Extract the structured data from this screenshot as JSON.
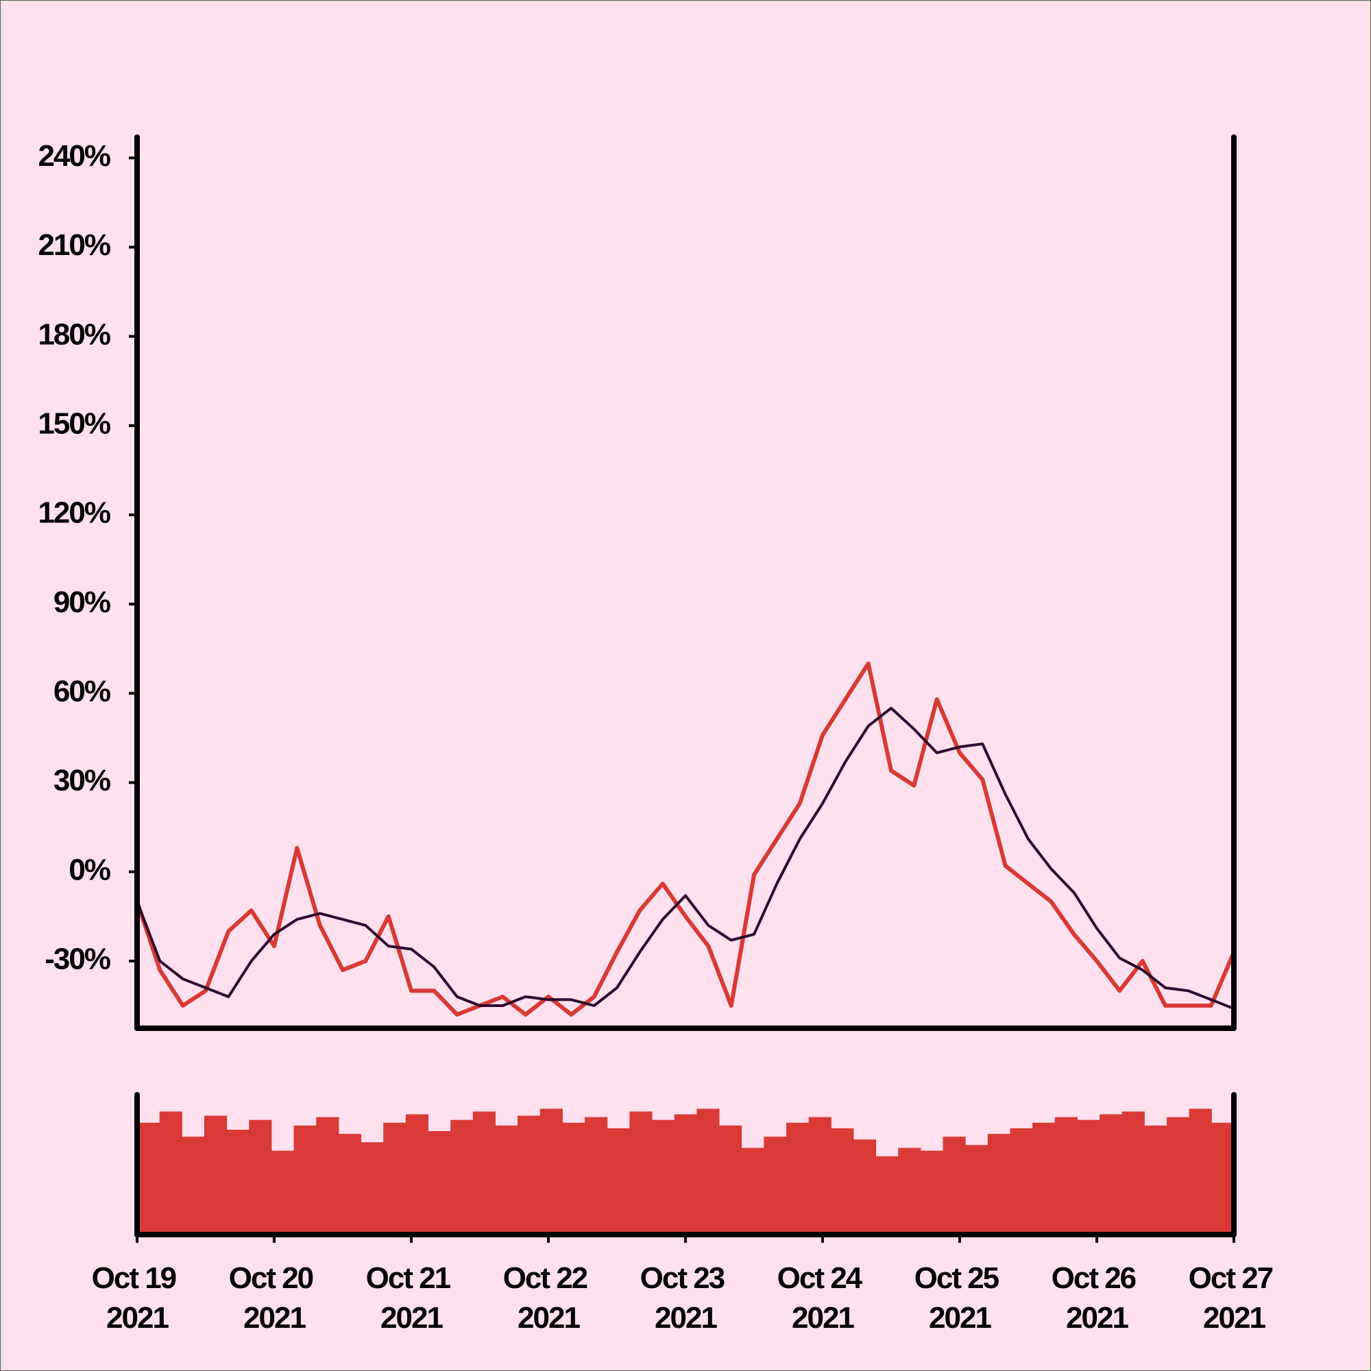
{
  "chart_data": {
    "type": "line",
    "x": [
      0,
      4,
      8,
      12,
      16,
      20,
      24,
      28,
      32,
      36,
      40,
      44,
      48,
      52,
      56,
      60,
      64,
      68,
      72,
      76,
      80,
      84,
      88,
      92,
      96,
      100,
      104,
      108,
      112,
      116,
      120,
      124,
      128,
      132,
      136,
      140,
      144,
      148,
      152,
      156,
      160,
      164,
      168,
      172,
      176,
      180,
      184,
      188,
      192
    ],
    "series": [
      {
        "color": "#d93a35",
        "values": [
          -10,
          -33,
          -45,
          -40,
          -20,
          -13,
          -25,
          8,
          -18,
          -33,
          -30,
          -15,
          -40,
          -40,
          -48,
          -45,
          -42,
          -48,
          -42,
          -48,
          -42,
          -27,
          -13,
          -4,
          -15,
          -25,
          -45,
          -1,
          11,
          23,
          46,
          58,
          70,
          34,
          29,
          58,
          40,
          31,
          2,
          -4,
          -10,
          -21,
          -30,
          -40,
          -30,
          -45,
          -45,
          -45,
          -27
        ]
      },
      {
        "color": "#2d0a2e",
        "values": [
          -10,
          -30,
          -36,
          -39,
          -42,
          -30,
          -21,
          -16,
          -14,
          -16,
          -18,
          -25,
          -26,
          -32,
          -42,
          -45,
          -45,
          -42,
          -43,
          -43,
          -45,
          -39,
          -27,
          -16,
          -8,
          -18,
          -23,
          -21,
          -4,
          11,
          23,
          37,
          49,
          55,
          48,
          40,
          42,
          43,
          26,
          11,
          1,
          -7,
          -19,
          -29,
          -33,
          -39,
          -40,
          -43,
          -46
        ]
      }
    ],
    "ylim": [
      -52.6,
      247
    ],
    "yticks": [
      {
        "value": -30,
        "label": "-30%"
      },
      {
        "value": 0,
        "label": "0%"
      },
      {
        "value": 30,
        "label": "30%"
      },
      {
        "value": 60,
        "label": "60%"
      },
      {
        "value": 90,
        "label": "90%"
      },
      {
        "value": 120,
        "label": "120%"
      },
      {
        "value": 150,
        "label": "150%"
      },
      {
        "value": 180,
        "label": "180%"
      },
      {
        "value": 210,
        "label": "210%"
      },
      {
        "value": 240,
        "label": "240%"
      }
    ],
    "xlim": [
      0,
      192
    ],
    "xticks": [
      {
        "value": 0,
        "label": "Oct 19 2021"
      },
      {
        "value": 24,
        "label": "Oct 20 2021"
      },
      {
        "value": 48,
        "label": "Oct 21 2021"
      },
      {
        "value": 72,
        "label": "Oct 22 2021"
      },
      {
        "value": 96,
        "label": "Oct 23 2021"
      },
      {
        "value": 120,
        "label": "Oct 24 2021"
      },
      {
        "value": 144,
        "label": "Oct 25 2021"
      },
      {
        "value": 168,
        "label": "Oct 26 2021"
      },
      {
        "value": 192,
        "label": "Oct 27 2021"
      }
    ],
    "volume": {
      "color": "#d93a35",
      "ylim": [
        0,
        100
      ],
      "values": [
        80,
        88,
        70,
        85,
        75,
        82,
        60,
        78,
        84,
        72,
        66,
        80,
        86,
        74,
        82,
        88,
        78,
        85,
        90,
        80,
        84,
        76,
        88,
        82,
        86,
        90,
        78,
        62,
        70,
        80,
        84,
        76,
        68,
        56,
        62,
        60,
        70,
        64,
        72,
        76,
        80,
        84,
        82,
        86,
        88,
        78,
        84,
        90,
        80
      ]
    }
  }
}
